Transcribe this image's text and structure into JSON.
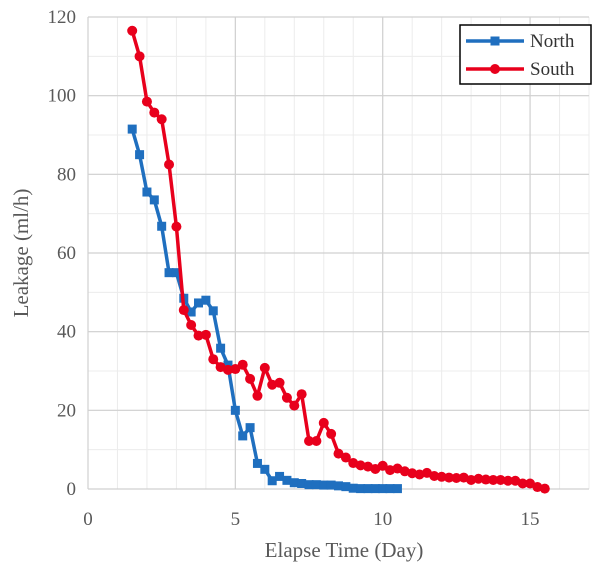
{
  "chart_data": {
    "type": "line",
    "title": "",
    "xlabel": "Elapse Time (Day)",
    "ylabel": "Leakage (ml/h)",
    "xlim": [
      0,
      17
    ],
    "ylim": [
      0,
      120
    ],
    "xticks": [
      0,
      5,
      10,
      15
    ],
    "yticks": [
      0,
      20,
      40,
      60,
      80,
      100,
      120
    ],
    "x_minor_step": 1,
    "y_minor_step": 10,
    "grid": true,
    "legend": "top-right",
    "series": [
      {
        "name": "North",
        "color": "#1f6fbf",
        "marker": "square",
        "points": [
          [
            1.5,
            91.5
          ],
          [
            1.75,
            85
          ],
          [
            2.0,
            75.5
          ],
          [
            2.25,
            73.5
          ],
          [
            2.5,
            66.8
          ],
          [
            2.75,
            55
          ],
          [
            3.0,
            55
          ],
          [
            3.25,
            48.5
          ],
          [
            3.5,
            45
          ],
          [
            3.75,
            47.3
          ],
          [
            4.0,
            48
          ],
          [
            4.25,
            45.3
          ],
          [
            4.5,
            35.8
          ],
          [
            4.75,
            31.5
          ],
          [
            5.0,
            20
          ],
          [
            5.25,
            13.5
          ],
          [
            5.5,
            15.6
          ],
          [
            5.75,
            6.5
          ],
          [
            6.0,
            5
          ],
          [
            6.25,
            2.1
          ],
          [
            6.5,
            3.2
          ],
          [
            6.75,
            2.2
          ],
          [
            7.0,
            1.6
          ],
          [
            7.25,
            1.4
          ],
          [
            7.5,
            1.1
          ],
          [
            7.75,
            1.1
          ],
          [
            8.0,
            1.0
          ],
          [
            8.25,
            1.0
          ],
          [
            8.5,
            0.8
          ],
          [
            8.75,
            0.6
          ],
          [
            9.0,
            0.2
          ],
          [
            9.25,
            0.1
          ],
          [
            9.5,
            0.1
          ],
          [
            9.75,
            0.1
          ],
          [
            10.0,
            0.1
          ],
          [
            10.25,
            0.1
          ],
          [
            10.5,
            0.1
          ]
        ]
      },
      {
        "name": "South",
        "color": "#e8001c",
        "marker": "circle",
        "points": [
          [
            1.5,
            116.5
          ],
          [
            1.75,
            110
          ],
          [
            2.0,
            98.5
          ],
          [
            2.25,
            95.7
          ],
          [
            2.5,
            94
          ],
          [
            2.75,
            82.5
          ],
          [
            3.0,
            66.7
          ],
          [
            3.25,
            45.5
          ],
          [
            3.5,
            41.7
          ],
          [
            3.75,
            39
          ],
          [
            4.0,
            39.2
          ],
          [
            4.25,
            33
          ],
          [
            4.5,
            31
          ],
          [
            4.75,
            30.3
          ],
          [
            5.0,
            30.5
          ],
          [
            5.25,
            31.6
          ],
          [
            5.5,
            28
          ],
          [
            5.75,
            23.7
          ],
          [
            6.0,
            30.8
          ],
          [
            6.25,
            26.5
          ],
          [
            6.5,
            27
          ],
          [
            6.75,
            23.2
          ],
          [
            7.0,
            21.2
          ],
          [
            7.25,
            24.1
          ],
          [
            7.5,
            12.2
          ],
          [
            7.75,
            12.2
          ],
          [
            8.0,
            16.8
          ],
          [
            8.25,
            14
          ],
          [
            8.5,
            9
          ],
          [
            8.75,
            8
          ],
          [
            9.0,
            6.6
          ],
          [
            9.25,
            6
          ],
          [
            9.5,
            5.7
          ],
          [
            9.75,
            5.1
          ],
          [
            10.0,
            5.9
          ],
          [
            10.25,
            4.8
          ],
          [
            10.5,
            5.2
          ],
          [
            10.75,
            4.5
          ],
          [
            11.0,
            4
          ],
          [
            11.25,
            3.7
          ],
          [
            11.5,
            4.1
          ],
          [
            11.75,
            3.3
          ],
          [
            12.0,
            3.1
          ],
          [
            12.25,
            2.9
          ],
          [
            12.5,
            2.8
          ],
          [
            12.75,
            2.9
          ],
          [
            13.0,
            2.3
          ],
          [
            13.25,
            2.6
          ],
          [
            13.5,
            2.4
          ],
          [
            13.75,
            2.3
          ],
          [
            14.0,
            2.3
          ],
          [
            14.25,
            2.1
          ],
          [
            14.5,
            2.1
          ],
          [
            14.75,
            1.4
          ],
          [
            15.0,
            1.4
          ],
          [
            15.25,
            0.5
          ],
          [
            15.5,
            0.1
          ]
        ]
      }
    ]
  }
}
